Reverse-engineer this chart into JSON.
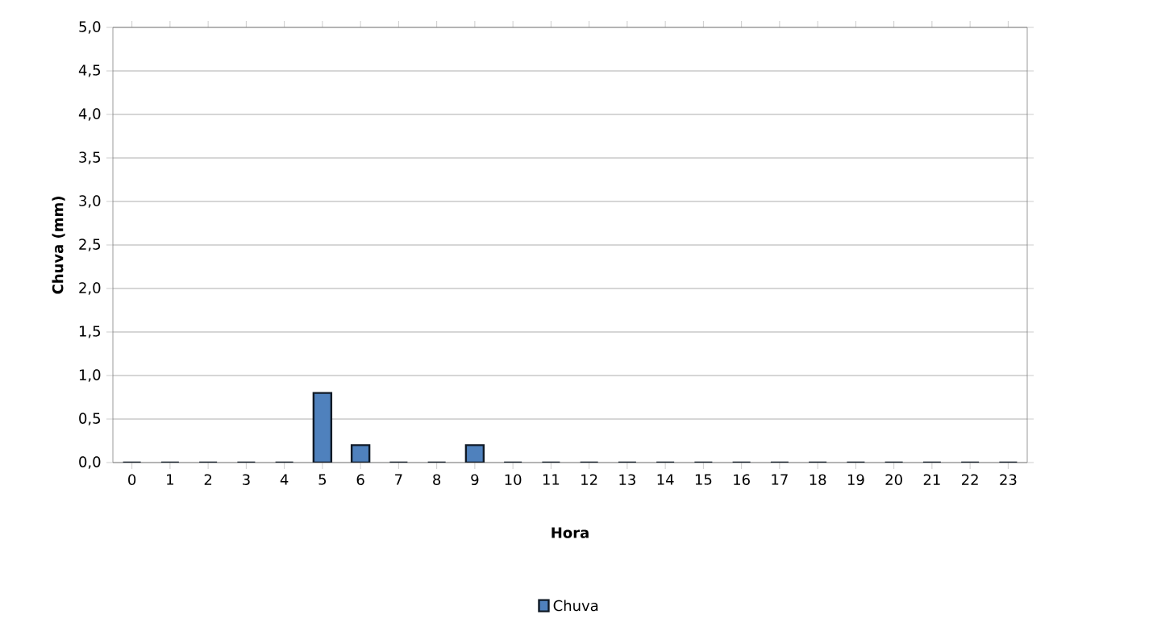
{
  "chart_data": {
    "type": "bar",
    "xlabel": "Hora",
    "ylabel": "Chuva (mm)",
    "categories": [
      "0",
      "1",
      "2",
      "3",
      "4",
      "5",
      "6",
      "7",
      "8",
      "9",
      "10",
      "11",
      "12",
      "13",
      "14",
      "15",
      "16",
      "17",
      "18",
      "19",
      "20",
      "21",
      "22",
      "23"
    ],
    "series": [
      {
        "name": "Chuva",
        "color": "#4f81bd",
        "values": [
          0,
          0,
          0,
          0,
          0,
          0.8,
          0.2,
          0,
          0,
          0.2,
          0,
          0,
          0,
          0,
          0,
          0,
          0,
          0,
          0,
          0,
          0,
          0,
          0,
          0
        ]
      }
    ],
    "ylim": [
      0,
      5
    ],
    "yticks": [
      {
        "value": 0,
        "label": "0,0"
      },
      {
        "value": 0.5,
        "label": "0,5"
      },
      {
        "value": 1,
        "label": "1,0"
      },
      {
        "value": 1.5,
        "label": "1,5"
      },
      {
        "value": 2,
        "label": "2,0"
      },
      {
        "value": 2.5,
        "label": "2,5"
      },
      {
        "value": 3,
        "label": "3,0"
      },
      {
        "value": 3.5,
        "label": "3,5"
      },
      {
        "value": 4,
        "label": "4,0"
      },
      {
        "value": 4.5,
        "label": "4,5"
      },
      {
        "value": 5,
        "label": "5,0"
      }
    ],
    "grid": "y",
    "legend": "bottom"
  }
}
